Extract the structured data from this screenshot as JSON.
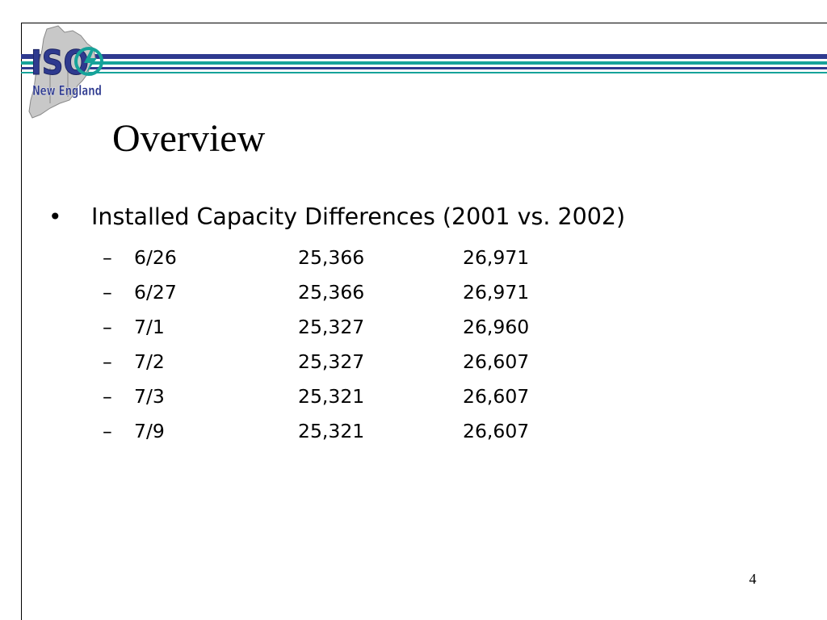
{
  "logo": {
    "line1": "ISO",
    "line2": "New England"
  },
  "title": "Overview",
  "bullet": {
    "marker": "•",
    "text": "Installed Capacity Differences (2001 vs. 2002)"
  },
  "rows": [
    {
      "dash": "–",
      "date": "6/26",
      "val_2001": "25,366",
      "val_2002": "26,971"
    },
    {
      "dash": "–",
      "date": "6/27",
      "val_2001": "25,366",
      "val_2002": "26,971"
    },
    {
      "dash": "–",
      "date": "7/1",
      "val_2001": "25,327",
      "val_2002": "26,960"
    },
    {
      "dash": "–",
      "date": "7/2",
      "val_2001": "25,327",
      "val_2002": "26,607"
    },
    {
      "dash": "–",
      "date": "7/3",
      "val_2001": "25,321",
      "val_2002": "26,607"
    },
    {
      "dash": "–",
      "date": "7/9",
      "val_2001": "25,321",
      "val_2002": "26,607"
    }
  ],
  "page_number": "4",
  "colors": {
    "navy": "#2e3a8f",
    "teal": "#16a39a",
    "map_gray": "#c8c8c8"
  }
}
